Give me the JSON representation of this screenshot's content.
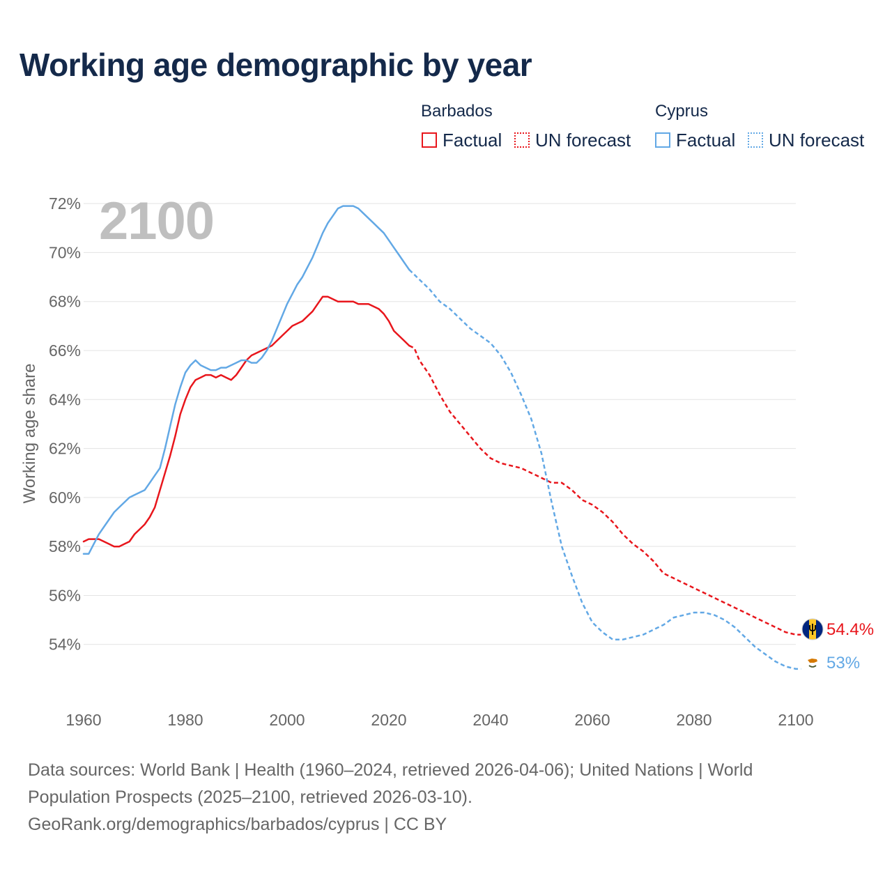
{
  "colors": {
    "barbados": "#e8161c",
    "cyprus": "#62a8e5",
    "title": "#14294a",
    "grid": "#e3e3e3",
    "axis_text": "#666666",
    "year_watermark": "#bfbfbf"
  },
  "chart_data": {
    "type": "line",
    "title": "Working age demographic by year",
    "xlabel": "",
    "ylabel": "Working age share",
    "xlim": [
      1960,
      2100
    ],
    "ylim": [
      52.2,
      72.8
    ],
    "x_ticks": [
      1960,
      1980,
      2000,
      2020,
      2040,
      2060,
      2080,
      2100
    ],
    "x_tick_labels": [
      "1960",
      "1980",
      "2000",
      "2020",
      "2040",
      "2060",
      "2080",
      "2100"
    ],
    "y_ticks": [
      54,
      56,
      58,
      60,
      62,
      64,
      66,
      68,
      70,
      72
    ],
    "y_tick_labels": [
      "54%",
      "56%",
      "58%",
      "60%",
      "62%",
      "64%",
      "66%",
      "68%",
      "70%",
      "72%"
    ],
    "grid": true,
    "year_label": "2100",
    "legend": {
      "placement": "top-right",
      "groups": [
        {
          "name": "Barbados",
          "factual_label": "Factual",
          "forecast_label": "UN forecast",
          "icon": "barbados-flag-icon"
        },
        {
          "name": "Cyprus",
          "factual_label": "Factual",
          "forecast_label": "UN forecast",
          "icon": "cyprus-flag-icon"
        }
      ]
    },
    "series": [
      {
        "name": "Barbados",
        "end_label": "54.4%",
        "factual": {
          "x": [
            1960,
            1961,
            1962,
            1963,
            1964,
            1965,
            1966,
            1967,
            1968,
            1969,
            1970,
            1971,
            1972,
            1973,
            1974,
            1975,
            1976,
            1977,
            1978,
            1979,
            1980,
            1981,
            1982,
            1983,
            1984,
            1985,
            1986,
            1987,
            1988,
            1989,
            1990,
            1991,
            1992,
            1993,
            1994,
            1995,
            1996,
            1997,
            1998,
            1999,
            2000,
            2001,
            2002,
            2003,
            2004,
            2005,
            2006,
            2007,
            2008,
            2009,
            2010,
            2011,
            2012,
            2013,
            2014,
            2015,
            2016,
            2017,
            2018,
            2019,
            2020,
            2021,
            2022,
            2023,
            2024
          ],
          "y": [
            58.2,
            58.3,
            58.3,
            58.3,
            58.2,
            58.1,
            58.0,
            58.0,
            58.1,
            58.2,
            58.5,
            58.7,
            58.9,
            59.2,
            59.6,
            60.3,
            61.0,
            61.7,
            62.5,
            63.4,
            64.0,
            64.5,
            64.8,
            64.9,
            65.0,
            65.0,
            64.9,
            65.0,
            64.9,
            64.8,
            65.0,
            65.3,
            65.6,
            65.8,
            65.9,
            66.0,
            66.1,
            66.2,
            66.4,
            66.6,
            66.8,
            67.0,
            67.1,
            67.2,
            67.4,
            67.6,
            67.9,
            68.2,
            68.2,
            68.1,
            68.0,
            68.0,
            68.0,
            68.0,
            67.9,
            67.9,
            67.9,
            67.8,
            67.7,
            67.5,
            67.2,
            66.8,
            66.6,
            66.4,
            66.2
          ]
        },
        "forecast": {
          "x": [
            2024,
            2025,
            2026,
            2028,
            2030,
            2032,
            2034,
            2036,
            2038,
            2040,
            2042,
            2044,
            2046,
            2048,
            2050,
            2052,
            2054,
            2056,
            2058,
            2060,
            2062,
            2064,
            2066,
            2068,
            2070,
            2072,
            2074,
            2076,
            2078,
            2080,
            2082,
            2084,
            2086,
            2088,
            2090,
            2092,
            2094,
            2096,
            2098,
            2100,
            2101
          ],
          "y": [
            66.2,
            66.1,
            65.6,
            65.0,
            64.2,
            63.5,
            63.0,
            62.5,
            62.0,
            61.6,
            61.4,
            61.3,
            61.2,
            61.0,
            60.8,
            60.6,
            60.6,
            60.3,
            59.9,
            59.7,
            59.4,
            59.0,
            58.5,
            58.1,
            57.8,
            57.4,
            56.9,
            56.7,
            56.5,
            56.3,
            56.1,
            55.9,
            55.7,
            55.5,
            55.3,
            55.1,
            54.9,
            54.7,
            54.5,
            54.4,
            54.4
          ]
        }
      },
      {
        "name": "Cyprus",
        "end_label": "53%",
        "factual": {
          "x": [
            1960,
            1961,
            1962,
            1963,
            1964,
            1965,
            1966,
            1967,
            1968,
            1969,
            1970,
            1971,
            1972,
            1973,
            1974,
            1975,
            1976,
            1977,
            1978,
            1979,
            1980,
            1981,
            1982,
            1983,
            1984,
            1985,
            1986,
            1987,
            1988,
            1989,
            1990,
            1991,
            1992,
            1993,
            1994,
            1995,
            1996,
            1997,
            1998,
            1999,
            2000,
            2001,
            2002,
            2003,
            2004,
            2005,
            2006,
            2007,
            2008,
            2009,
            2010,
            2011,
            2012,
            2013,
            2014,
            2015,
            2016,
            2017,
            2018,
            2019,
            2020,
            2021,
            2022,
            2023,
            2024
          ],
          "y": [
            57.7,
            57.7,
            58.1,
            58.5,
            58.8,
            59.1,
            59.4,
            59.6,
            59.8,
            60.0,
            60.1,
            60.2,
            60.3,
            60.6,
            60.9,
            61.2,
            62.0,
            62.9,
            63.8,
            64.5,
            65.1,
            65.4,
            65.6,
            65.4,
            65.3,
            65.2,
            65.2,
            65.3,
            65.3,
            65.4,
            65.5,
            65.6,
            65.6,
            65.5,
            65.5,
            65.7,
            66.0,
            66.4,
            66.9,
            67.4,
            67.9,
            68.3,
            68.7,
            69.0,
            69.4,
            69.8,
            70.3,
            70.8,
            71.2,
            71.5,
            71.8,
            71.9,
            71.9,
            71.9,
            71.8,
            71.6,
            71.4,
            71.2,
            71.0,
            70.8,
            70.5,
            70.2,
            69.9,
            69.6,
            69.3
          ]
        },
        "forecast": {
          "x": [
            2024,
            2026,
            2028,
            2030,
            2032,
            2034,
            2036,
            2038,
            2040,
            2042,
            2044,
            2046,
            2048,
            2050,
            2052,
            2054,
            2056,
            2058,
            2060,
            2062,
            2064,
            2066,
            2068,
            2070,
            2072,
            2074,
            2076,
            2078,
            2080,
            2082,
            2084,
            2086,
            2088,
            2090,
            2092,
            2094,
            2096,
            2098,
            2100,
            2101
          ],
          "y": [
            69.3,
            68.9,
            68.5,
            68.0,
            67.7,
            67.3,
            66.9,
            66.6,
            66.3,
            65.8,
            65.1,
            64.2,
            63.2,
            61.8,
            59.8,
            58.0,
            56.8,
            55.7,
            54.9,
            54.5,
            54.2,
            54.2,
            54.3,
            54.4,
            54.6,
            54.8,
            55.1,
            55.2,
            55.3,
            55.3,
            55.2,
            55.0,
            54.7,
            54.3,
            53.9,
            53.6,
            53.3,
            53.1,
            53.0,
            53.0
          ]
        }
      }
    ]
  },
  "footer": {
    "line1": "Data sources: World Bank | Health (1960–2024, retrieved 2026-04-06); United Nations | World",
    "line2": "Population Prospects (2025–2100, retrieved 2026-03-10).",
    "line3": "GeoRank.org/demographics/barbados/cyprus | CC BY"
  }
}
